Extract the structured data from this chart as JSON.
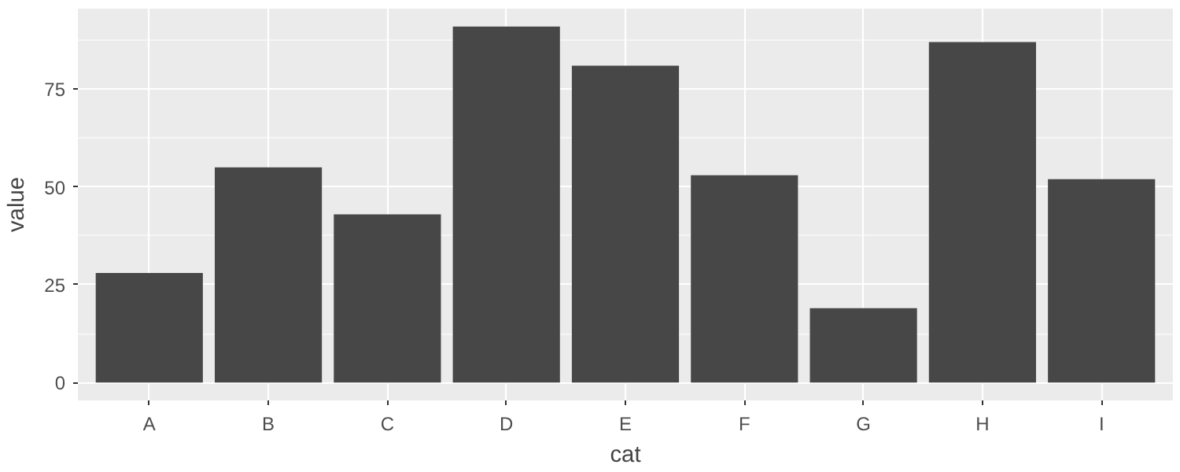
{
  "chart_data": {
    "type": "bar",
    "xlabel": "cat",
    "ylabel": "value",
    "categories": [
      "A",
      "B",
      "C",
      "D",
      "E",
      "F",
      "G",
      "H",
      "I"
    ],
    "values": [
      28,
      55,
      43,
      91,
      81,
      53,
      19,
      87,
      52
    ],
    "color": "#474747",
    "ylim": [
      -4.55,
      95.55
    ],
    "yticks": [
      0,
      25,
      50,
      75
    ],
    "grid": true
  }
}
